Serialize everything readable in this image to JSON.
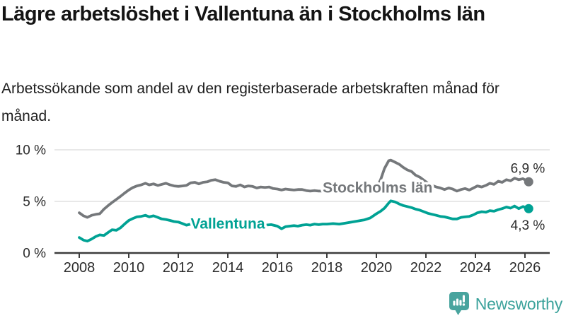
{
  "header": {
    "title": "Lägre arbetslöshet i Vallentuna än i Stockholms län",
    "subtitle": "Arbetssökande som andel av den registerbaserade arbetskraften månad för månad."
  },
  "footer": {
    "brand": "Newsworthy",
    "logo_icon": "newsworthy-speech-bubble-bar-chart-icon",
    "brand_color": "#3BA29B"
  },
  "chart_data": {
    "type": "line",
    "unit": "%",
    "x_axis": {
      "ticks": [
        2008,
        2010,
        2012,
        2014,
        2016,
        2018,
        2020,
        2022,
        2024,
        2026
      ],
      "range": [
        2007.0,
        2027.0
      ],
      "grid": false
    },
    "y_axis": {
      "ticks": [
        {
          "value": 0,
          "label": "0 %"
        },
        {
          "value": 5,
          "label": "5 %"
        },
        {
          "value": 10,
          "label": "10 %"
        }
      ],
      "range": [
        0,
        10.3
      ],
      "grid": true
    },
    "style": {
      "grid_color": "#d9d9d9",
      "axis_color": "#3d3d3d",
      "axis_text_color": "#2b2b2b",
      "value_text_color": "#2b2b2b"
    },
    "series": [
      {
        "id": "stockholms-lan",
        "name": "Stockholms län",
        "color": "#75787B",
        "end_label": "6,9 %",
        "end_label_position": "above",
        "label_anchor": {
          "x": 2020.05,
          "y": 6.37
        },
        "points": [
          [
            2008.0,
            3.9
          ],
          [
            2008.17,
            3.6
          ],
          [
            2008.33,
            3.45
          ],
          [
            2008.5,
            3.65
          ],
          [
            2008.67,
            3.75
          ],
          [
            2008.83,
            3.8
          ],
          [
            2009.0,
            4.25
          ],
          [
            2009.17,
            4.6
          ],
          [
            2009.33,
            4.9
          ],
          [
            2009.5,
            5.2
          ],
          [
            2009.67,
            5.5
          ],
          [
            2009.83,
            5.8
          ],
          [
            2010.0,
            6.1
          ],
          [
            2010.17,
            6.35
          ],
          [
            2010.33,
            6.5
          ],
          [
            2010.5,
            6.6
          ],
          [
            2010.67,
            6.75
          ],
          [
            2010.83,
            6.6
          ],
          [
            2011.0,
            6.7
          ],
          [
            2011.17,
            6.55
          ],
          [
            2011.33,
            6.65
          ],
          [
            2011.5,
            6.75
          ],
          [
            2011.67,
            6.6
          ],
          [
            2011.83,
            6.5
          ],
          [
            2012.0,
            6.45
          ],
          [
            2012.17,
            6.5
          ],
          [
            2012.33,
            6.55
          ],
          [
            2012.5,
            6.8
          ],
          [
            2012.67,
            6.85
          ],
          [
            2012.83,
            6.7
          ],
          [
            2013.0,
            6.85
          ],
          [
            2013.17,
            6.9
          ],
          [
            2013.33,
            7.05
          ],
          [
            2013.5,
            7.1
          ],
          [
            2013.67,
            6.95
          ],
          [
            2013.83,
            6.85
          ],
          [
            2014.0,
            6.8
          ],
          [
            2014.17,
            6.5
          ],
          [
            2014.33,
            6.45
          ],
          [
            2014.5,
            6.6
          ],
          [
            2014.67,
            6.4
          ],
          [
            2014.83,
            6.5
          ],
          [
            2015.0,
            6.45
          ],
          [
            2015.17,
            6.3
          ],
          [
            2015.33,
            6.4
          ],
          [
            2015.5,
            6.35
          ],
          [
            2015.67,
            6.4
          ],
          [
            2015.83,
            6.25
          ],
          [
            2016.0,
            6.2
          ],
          [
            2016.17,
            6.1
          ],
          [
            2016.33,
            6.2
          ],
          [
            2016.5,
            6.15
          ],
          [
            2016.67,
            6.1
          ],
          [
            2016.83,
            6.15
          ],
          [
            2017.0,
            6.15
          ],
          [
            2017.17,
            6.05
          ],
          [
            2017.33,
            6.0
          ],
          [
            2017.5,
            6.05
          ],
          [
            2017.67,
            6.0
          ],
          [
            2017.83,
            6.0
          ],
          [
            2018.0,
            6.0
          ],
          [
            2018.25,
            5.95
          ],
          [
            2018.5,
            5.9
          ],
          [
            2018.75,
            5.95
          ],
          [
            2019.0,
            5.9
          ],
          [
            2019.25,
            5.95
          ],
          [
            2019.5,
            6.0
          ],
          [
            2019.75,
            6.1
          ],
          [
            2020.0,
            6.3
          ],
          [
            2020.17,
            7.1
          ],
          [
            2020.33,
            8.2
          ],
          [
            2020.5,
            8.95
          ],
          [
            2020.58,
            9.0
          ],
          [
            2020.75,
            8.8
          ],
          [
            2020.92,
            8.6
          ],
          [
            2021.08,
            8.3
          ],
          [
            2021.25,
            8.05
          ],
          [
            2021.42,
            7.9
          ],
          [
            2021.58,
            7.55
          ],
          [
            2021.75,
            7.35
          ],
          [
            2021.92,
            7.05
          ],
          [
            2022.08,
            6.75
          ],
          [
            2022.25,
            6.55
          ],
          [
            2022.42,
            6.4
          ],
          [
            2022.58,
            6.3
          ],
          [
            2022.75,
            6.15
          ],
          [
            2022.92,
            6.3
          ],
          [
            2023.08,
            6.2
          ],
          [
            2023.25,
            6.0
          ],
          [
            2023.42,
            6.15
          ],
          [
            2023.58,
            6.25
          ],
          [
            2023.75,
            6.1
          ],
          [
            2023.92,
            6.3
          ],
          [
            2024.08,
            6.5
          ],
          [
            2024.25,
            6.4
          ],
          [
            2024.42,
            6.55
          ],
          [
            2024.58,
            6.75
          ],
          [
            2024.75,
            6.65
          ],
          [
            2024.92,
            6.95
          ],
          [
            2025.08,
            6.85
          ],
          [
            2025.25,
            7.1
          ],
          [
            2025.42,
            7.0
          ],
          [
            2025.58,
            7.25
          ],
          [
            2025.75,
            7.1
          ],
          [
            2025.92,
            7.2
          ],
          [
            2026.15,
            6.9
          ]
        ]
      },
      {
        "id": "vallentuna",
        "name": "Vallentuna",
        "color": "#00A294",
        "end_label": "4,3 %",
        "end_label_position": "below",
        "label_anchor": {
          "x": 2014.0,
          "y": 2.88
        },
        "points": [
          [
            2008.0,
            1.5
          ],
          [
            2008.17,
            1.25
          ],
          [
            2008.33,
            1.15
          ],
          [
            2008.5,
            1.35
          ],
          [
            2008.67,
            1.6
          ],
          [
            2008.83,
            1.75
          ],
          [
            2009.0,
            1.7
          ],
          [
            2009.17,
            2.0
          ],
          [
            2009.33,
            2.25
          ],
          [
            2009.5,
            2.2
          ],
          [
            2009.67,
            2.45
          ],
          [
            2009.83,
            2.8
          ],
          [
            2010.0,
            3.15
          ],
          [
            2010.17,
            3.35
          ],
          [
            2010.33,
            3.5
          ],
          [
            2010.5,
            3.55
          ],
          [
            2010.67,
            3.65
          ],
          [
            2010.83,
            3.5
          ],
          [
            2011.0,
            3.6
          ],
          [
            2011.17,
            3.45
          ],
          [
            2011.33,
            3.3
          ],
          [
            2011.5,
            3.25
          ],
          [
            2011.67,
            3.15
          ],
          [
            2011.83,
            3.05
          ],
          [
            2012.0,
            3.0
          ],
          [
            2012.17,
            2.85
          ],
          [
            2012.33,
            2.7
          ],
          [
            2012.5,
            2.8
          ],
          [
            2012.67,
            2.9
          ],
          [
            2012.83,
            2.95
          ],
          [
            2013.0,
            3.0
          ],
          [
            2013.25,
            3.1
          ],
          [
            2013.5,
            3.15
          ],
          [
            2013.75,
            3.05
          ],
          [
            2014.0,
            3.0
          ],
          [
            2014.25,
            2.9
          ],
          [
            2014.5,
            2.85
          ],
          [
            2014.75,
            2.8
          ],
          [
            2015.0,
            2.75
          ],
          [
            2015.25,
            2.8
          ],
          [
            2015.5,
            2.7
          ],
          [
            2015.75,
            2.75
          ],
          [
            2016.0,
            2.6
          ],
          [
            2016.17,
            2.35
          ],
          [
            2016.33,
            2.55
          ],
          [
            2016.5,
            2.6
          ],
          [
            2016.67,
            2.65
          ],
          [
            2016.83,
            2.6
          ],
          [
            2017.0,
            2.7
          ],
          [
            2017.17,
            2.75
          ],
          [
            2017.33,
            2.7
          ],
          [
            2017.5,
            2.8
          ],
          [
            2017.67,
            2.75
          ],
          [
            2017.83,
            2.8
          ],
          [
            2018.0,
            2.8
          ],
          [
            2018.25,
            2.85
          ],
          [
            2018.5,
            2.8
          ],
          [
            2018.75,
            2.9
          ],
          [
            2019.0,
            3.0
          ],
          [
            2019.25,
            3.1
          ],
          [
            2019.5,
            3.2
          ],
          [
            2019.75,
            3.4
          ],
          [
            2020.0,
            3.8
          ],
          [
            2020.17,
            4.05
          ],
          [
            2020.33,
            4.35
          ],
          [
            2020.5,
            4.85
          ],
          [
            2020.58,
            5.05
          ],
          [
            2020.75,
            4.95
          ],
          [
            2020.92,
            4.75
          ],
          [
            2021.08,
            4.6
          ],
          [
            2021.25,
            4.5
          ],
          [
            2021.42,
            4.4
          ],
          [
            2021.58,
            4.25
          ],
          [
            2021.75,
            4.15
          ],
          [
            2021.92,
            4.0
          ],
          [
            2022.08,
            3.85
          ],
          [
            2022.25,
            3.75
          ],
          [
            2022.42,
            3.65
          ],
          [
            2022.58,
            3.55
          ],
          [
            2022.75,
            3.5
          ],
          [
            2022.92,
            3.4
          ],
          [
            2023.08,
            3.3
          ],
          [
            2023.25,
            3.3
          ],
          [
            2023.42,
            3.45
          ],
          [
            2023.58,
            3.5
          ],
          [
            2023.75,
            3.55
          ],
          [
            2023.92,
            3.7
          ],
          [
            2024.08,
            3.9
          ],
          [
            2024.25,
            4.0
          ],
          [
            2024.42,
            3.95
          ],
          [
            2024.58,
            4.1
          ],
          [
            2024.75,
            4.05
          ],
          [
            2024.92,
            4.2
          ],
          [
            2025.08,
            4.3
          ],
          [
            2025.25,
            4.45
          ],
          [
            2025.42,
            4.35
          ],
          [
            2025.58,
            4.55
          ],
          [
            2025.75,
            4.3
          ],
          [
            2025.92,
            4.5
          ],
          [
            2026.15,
            4.3
          ]
        ]
      }
    ]
  }
}
